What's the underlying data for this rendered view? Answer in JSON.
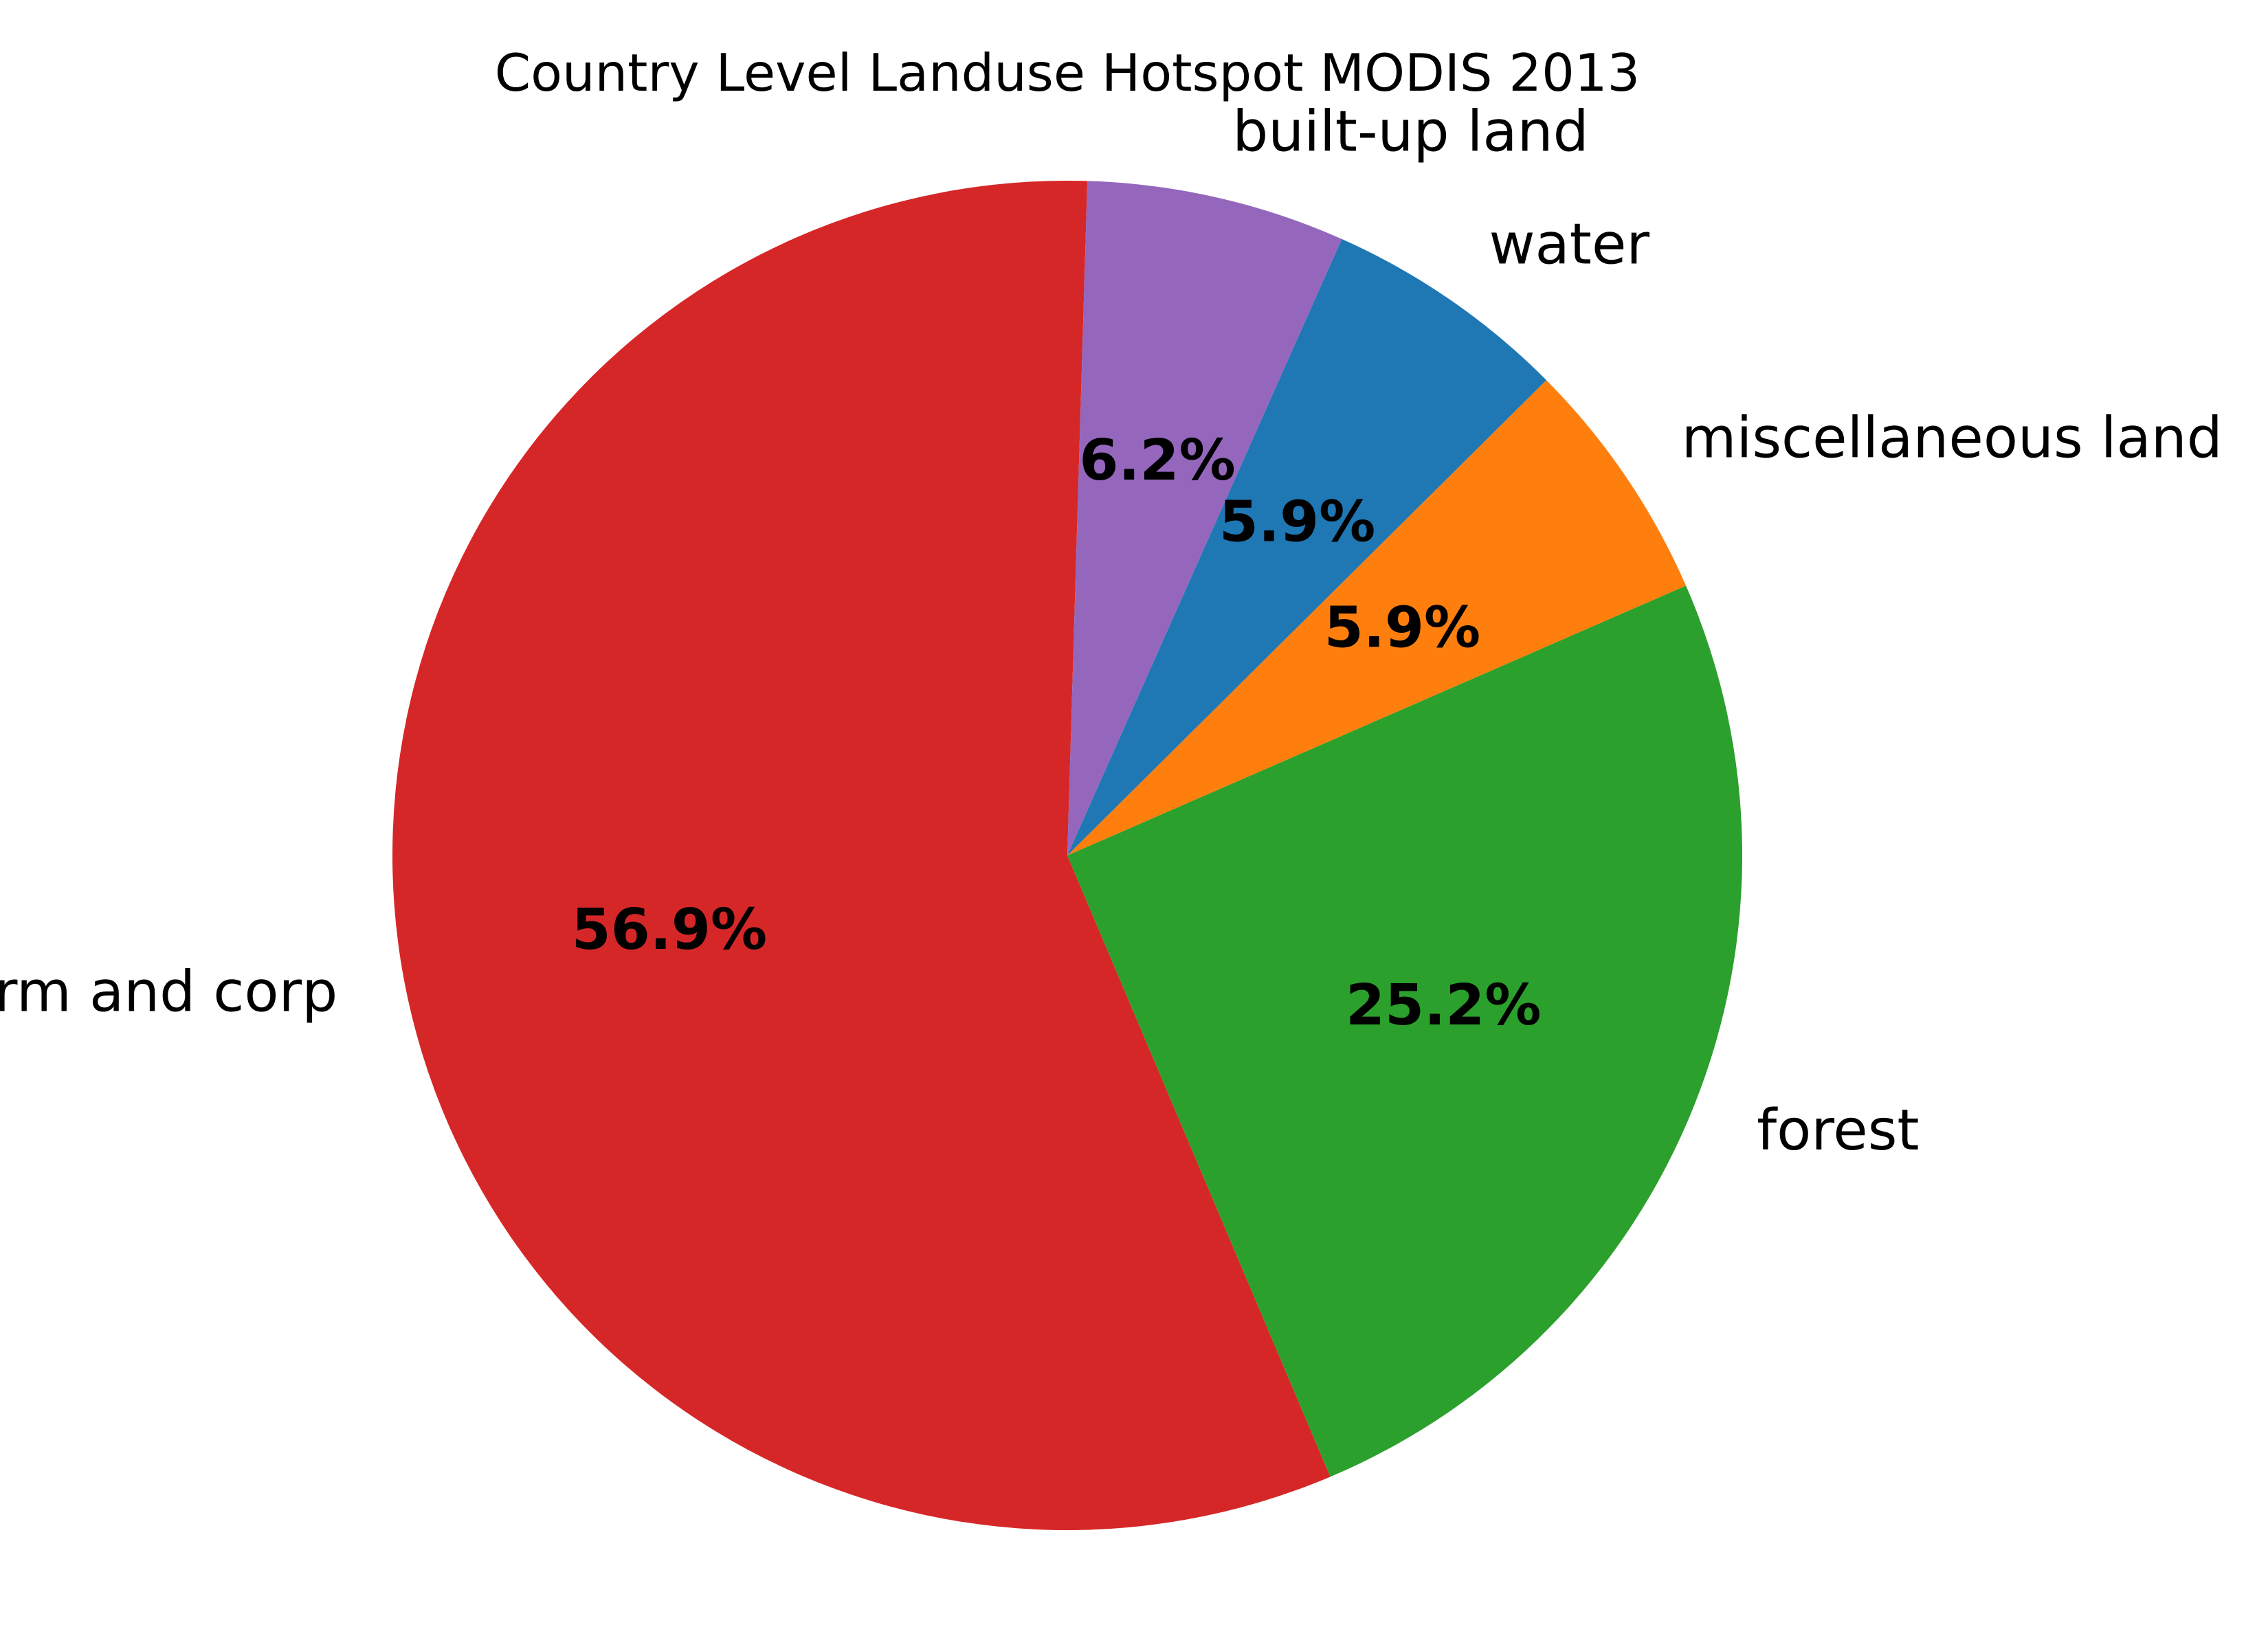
{
  "chart_data": {
    "type": "pie",
    "title": "Country Level Landuse Hotspot MODIS 2013",
    "slices": [
      {
        "label": "farm and corp",
        "value": 56.9,
        "pct_label": "56.9%",
        "color": "#d62728"
      },
      {
        "label": "forest",
        "value": 25.2,
        "pct_label": "25.2%",
        "color": "#2ca02c"
      },
      {
        "label": "miscellaneous land",
        "value": 5.9,
        "pct_label": "5.9%",
        "color": "#ff7f0e"
      },
      {
        "label": "water",
        "value": 5.9,
        "pct_label": "5.9%",
        "color": "#1f77b4"
      },
      {
        "label": "built-up land",
        "value": 6.2,
        "pct_label": "6.2%",
        "color": "#9467bd"
      }
    ]
  }
}
